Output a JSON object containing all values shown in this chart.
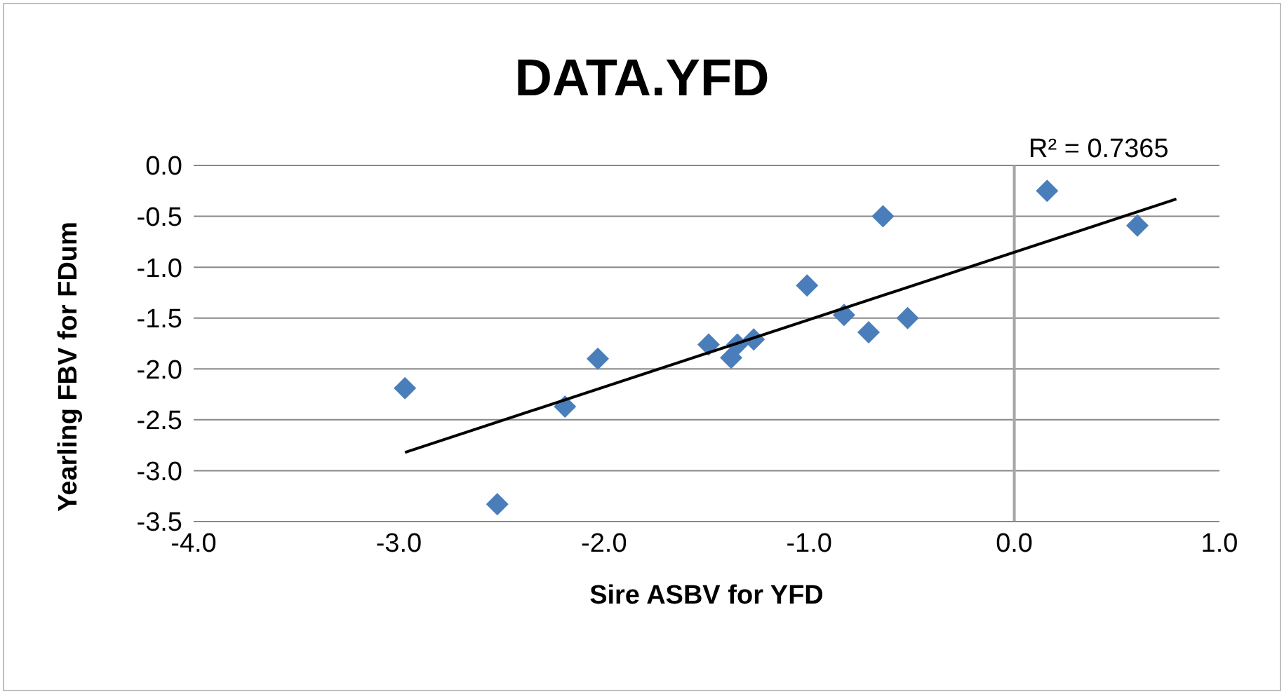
{
  "chart_data": {
    "type": "scatter",
    "title": "DATA.YFD",
    "xlabel": "Sire ASBV for YFD",
    "ylabel": "Yearling FBV for FDum",
    "xlim": [
      -4,
      1
    ],
    "xticks": [
      {
        "value": -4,
        "label": "-4.0"
      },
      {
        "value": -3,
        "label": "-3.0"
      },
      {
        "value": -2,
        "label": "-2.0"
      },
      {
        "value": -1,
        "label": "-1.0"
      },
      {
        "value": 0,
        "label": "0.0"
      },
      {
        "value": 1,
        "label": "1.0"
      }
    ],
    "ylim": [
      -3.5,
      0
    ],
    "yticks": [
      {
        "value": -3.5,
        "label": "-3.5"
      },
      {
        "value": -3,
        "label": "-3.0"
      },
      {
        "value": -2.5,
        "label": "-2.5"
      },
      {
        "value": -2,
        "label": "-2.0"
      },
      {
        "value": -1.5,
        "label": "-1.5"
      },
      {
        "value": -1,
        "label": "-1.0"
      },
      {
        "value": -0.5,
        "label": "-0.5"
      },
      {
        "value": 0,
        "label": "0.0"
      }
    ],
    "grid": "y",
    "legend": false,
    "marker": "diamond",
    "ref_lines": [
      {
        "axis": "x",
        "value": 0,
        "color": "#a6a6a6"
      }
    ],
    "series": [
      {
        "color": "#4a7ebb",
        "x": [
          -2.97,
          -2.52,
          -2.19,
          -2.03,
          -1.49,
          -1.38,
          -1.35,
          -1.27,
          -1.01,
          -0.71,
          -0.83,
          -0.64,
          -0.52,
          0.16,
          0.6
        ],
        "values": [
          -2.19,
          -3.33,
          -2.37,
          -1.9,
          -1.76,
          -1.89,
          -1.76,
          -1.71,
          -1.18,
          -1.64,
          -1.47,
          -0.5,
          -1.5,
          -0.25,
          -0.59
        ]
      },
      {
        "type": "line",
        "color": "#000000",
        "marker": "none",
        "x": [
          -2.97,
          0.79
        ],
        "values": [
          -2.82,
          -0.33
        ]
      }
    ],
    "annotations": [
      "R² = 0.7365"
    ]
  }
}
